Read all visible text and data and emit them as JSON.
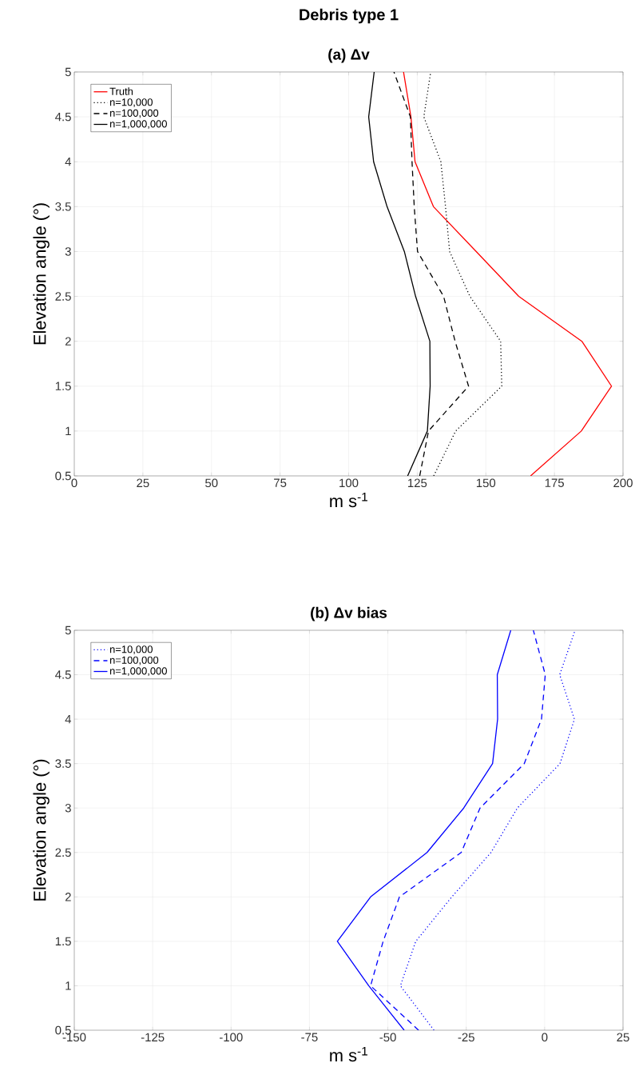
{
  "chart_data": [
    {
      "type": "line",
      "title": "Debris type 1",
      "subtitle": "(a) Δv",
      "xlabel": "m s$^{-1}$",
      "ylabel": "Elevation angle (°)",
      "xlim": [
        0,
        200
      ],
      "ylim": [
        0.5,
        5
      ],
      "xticks": [
        0,
        25,
        50,
        75,
        100,
        125,
        150,
        175,
        200
      ],
      "yticks": [
        0.5,
        1,
        1.5,
        2,
        2.5,
        3,
        3.5,
        4,
        4.5,
        5
      ],
      "grid": true,
      "legend": "top left",
      "series": [
        {
          "name": "Truth",
          "color": "#ff0000",
          "line_style": "solid",
          "x": [
            166.3,
            184.8,
            195.8,
            185,
            162,
            146.5,
            130.9,
            124.2,
            122.7,
            120
          ],
          "values": [
            0.5,
            1,
            1.5,
            2,
            2.5,
            3,
            3.5,
            4,
            4.5,
            5
          ]
        },
        {
          "name": "n=10,000",
          "color": "#000000",
          "line_style": "dotted",
          "x": [
            131,
            139,
            155.8,
            155.4,
            144.2,
            136.8,
            135.3,
            133.6,
            127.4,
            129.9
          ],
          "values": [
            0.5,
            1,
            1.5,
            2,
            2.5,
            3,
            3.5,
            4,
            4.5,
            5
          ]
        },
        {
          "name": "n=100,000",
          "color": "#000000",
          "line_style": "dashed",
          "x": [
            125.9,
            129.1,
            143.7,
            138.8,
            134.6,
            125.1,
            123.9,
            123.1,
            122.5,
            116.5
          ],
          "values": [
            0.5,
            1,
            1.5,
            2,
            2.5,
            3,
            3.5,
            4,
            4.5,
            5
          ]
        },
        {
          "name": "n=1,000,000",
          "color": "#000000",
          "line_style": "solid",
          "x": [
            121.5,
            128.7,
            129.7,
            129.6,
            124.4,
            120.3,
            114,
            109.1,
            107.3,
            109.3
          ],
          "values": [
            0.5,
            1,
            1.5,
            2,
            2.5,
            3,
            3.5,
            4,
            4.5,
            5
          ]
        }
      ]
    },
    {
      "type": "line",
      "title": "(b) Δv bias",
      "xlabel": "m s$^{-1}$",
      "ylabel": "Elevation angle (°)",
      "xlim": [
        -150,
        25
      ],
      "ylim": [
        0.5,
        5
      ],
      "xticks": [
        -150,
        -125,
        -100,
        -75,
        -50,
        -25,
        0,
        25
      ],
      "yticks": [
        0.5,
        1,
        1.5,
        2,
        2.5,
        3,
        3.5,
        4,
        4.5,
        5
      ],
      "grid": true,
      "legend": "top left",
      "series": [
        {
          "name": "n=10,000",
          "color": "#0000ff",
          "line_style": "dotted",
          "x": [
            -35.3,
            -46,
            -41.1,
            -29.6,
            -17.1,
            -8.7,
            4.9,
            9.5,
            4.8,
            9.7
          ],
          "values": [
            0.5,
            1,
            1.5,
            2,
            2.5,
            3,
            3.5,
            4,
            4.5,
            5
          ]
        },
        {
          "name": "n=100,000",
          "color": "#0000ff",
          "line_style": "dashed",
          "x": [
            -40.2,
            -55.5,
            -51.5,
            -46.3,
            -26.6,
            -20.6,
            -6.5,
            -1,
            0.2,
            -3.6
          ],
          "values": [
            0.5,
            1,
            1.5,
            2,
            2.5,
            3,
            3.5,
            4,
            4.5,
            5
          ]
        },
        {
          "name": "n=1,000,000",
          "color": "#0000ff",
          "line_style": "solid",
          "x": [
            -44.8,
            -56.1,
            -66.1,
            -55.5,
            -37.5,
            -25.8,
            -16.6,
            -15,
            -15.1,
            -10.8
          ],
          "values": [
            0.5,
            1,
            1.5,
            2,
            2.5,
            3,
            3.5,
            4,
            4.5,
            5
          ]
        }
      ]
    }
  ]
}
